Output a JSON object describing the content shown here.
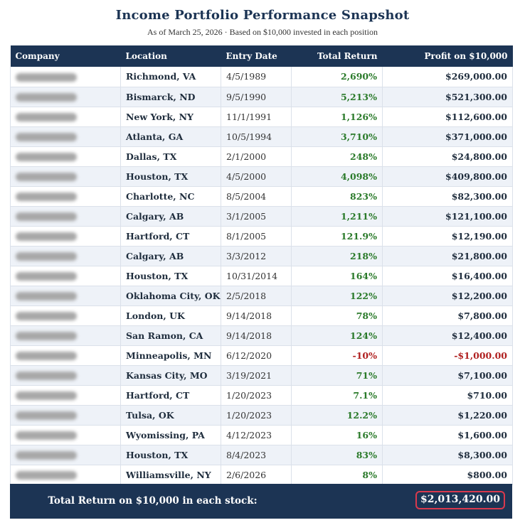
{
  "header": {
    "title": "Income Portfolio Performance Snapshot",
    "subtitle": "As of March 25, 2026 · Based on $10,000 invested in each position"
  },
  "table": {
    "columns": [
      "Company",
      "Location",
      "Entry Date",
      "Total Return",
      "Profit on $10,000"
    ],
    "rows": [
      {
        "location": "Richmond, VA",
        "entry_date": "4/5/1989",
        "total_return": "2,690%",
        "profit": "$269,000.00",
        "negative": false
      },
      {
        "location": "Bismarck, ND",
        "entry_date": "9/5/1990",
        "total_return": "5,213%",
        "profit": "$521,300.00",
        "negative": false
      },
      {
        "location": "New York, NY",
        "entry_date": "11/1/1991",
        "total_return": "1,126%",
        "profit": "$112,600.00",
        "negative": false
      },
      {
        "location": "Atlanta, GA",
        "entry_date": "10/5/1994",
        "total_return": "3,710%",
        "profit": "$371,000.00",
        "negative": false
      },
      {
        "location": "Dallas, TX",
        "entry_date": "2/1/2000",
        "total_return": "248%",
        "profit": "$24,800.00",
        "negative": false
      },
      {
        "location": "Houston, TX",
        "entry_date": "4/5/2000",
        "total_return": "4,098%",
        "profit": "$409,800.00",
        "negative": false
      },
      {
        "location": "Charlotte, NC",
        "entry_date": "8/5/2004",
        "total_return": "823%",
        "profit": "$82,300.00",
        "negative": false
      },
      {
        "location": "Calgary, AB",
        "entry_date": "3/1/2005",
        "total_return": "1,211%",
        "profit": "$121,100.00",
        "negative": false
      },
      {
        "location": "Hartford, CT",
        "entry_date": "8/1/2005",
        "total_return": "121.9%",
        "profit": "$12,190.00",
        "negative": false
      },
      {
        "location": "Calgary, AB",
        "entry_date": "3/3/2012",
        "total_return": "218%",
        "profit": "$21,800.00",
        "negative": false
      },
      {
        "location": "Houston, TX",
        "entry_date": "10/31/2014",
        "total_return": "164%",
        "profit": "$16,400.00",
        "negative": false
      },
      {
        "location": "Oklahoma City, OK",
        "entry_date": "2/5/2018",
        "total_return": "122%",
        "profit": "$12,200.00",
        "negative": false
      },
      {
        "location": "London, UK",
        "entry_date": "9/14/2018",
        "total_return": "78%",
        "profit": "$7,800.00",
        "negative": false
      },
      {
        "location": "San Ramon, CA",
        "entry_date": "9/14/2018",
        "total_return": "124%",
        "profit": "$12,400.00",
        "negative": false
      },
      {
        "location": "Minneapolis, MN",
        "entry_date": "6/12/2020",
        "total_return": "-10%",
        "profit": "-$1,000.00",
        "negative": true
      },
      {
        "location": "Kansas City, MO",
        "entry_date": "3/19/2021",
        "total_return": "71%",
        "profit": "$7,100.00",
        "negative": false
      },
      {
        "location": "Hartford, CT",
        "entry_date": "1/20/2023",
        "total_return": "7.1%",
        "profit": "$710.00",
        "negative": false
      },
      {
        "location": "Tulsa, OK",
        "entry_date": "1/20/2023",
        "total_return": "12.2%",
        "profit": "$1,220.00",
        "negative": false
      },
      {
        "location": "Wyomissing, PA",
        "entry_date": "4/12/2023",
        "total_return": "16%",
        "profit": "$1,600.00",
        "negative": false
      },
      {
        "location": "Houston, TX",
        "entry_date": "8/4/2023",
        "total_return": "83%",
        "profit": "$8,300.00",
        "negative": false
      },
      {
        "location": "Williamsville, NY",
        "entry_date": "2/6/2026",
        "total_return": "8%",
        "profit": "$800.00",
        "negative": false
      }
    ]
  },
  "footer": {
    "label": "Total Return on $10,000 in each stock:",
    "total": "$2,013,420.00"
  },
  "colors": {
    "header_bg": "#1c3454",
    "positive": "#2a7a2a",
    "negative": "#b01f1f",
    "highlight_border": "#d9394d",
    "row_alt": "#eef2f8"
  }
}
